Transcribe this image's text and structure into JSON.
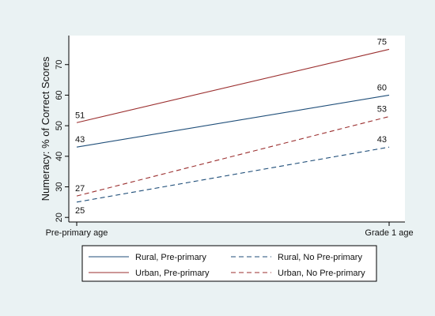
{
  "chart_data": {
    "type": "line",
    "title": "",
    "xlabel": "",
    "ylabel": "Numeracy: % of Correct Scores",
    "categories": [
      "Pre-primary age",
      "Grade 1 age"
    ],
    "ylim": [
      18.5,
      79.5
    ],
    "yticks": [
      20,
      30,
      40,
      50,
      60,
      70
    ],
    "grid": false,
    "legend_position": "bottom",
    "series": [
      {
        "name": "Rural, Pre-primary",
        "values": [
          43,
          60
        ],
        "labels": [
          "43",
          "60"
        ],
        "color": "#1f4e79",
        "dashed": false
      },
      {
        "name": "Urban, Pre-primary",
        "values": [
          51,
          75
        ],
        "labels": [
          "51",
          "75"
        ],
        "color": "#9b2f2f",
        "dashed": false
      },
      {
        "name": "Rural, No Pre-primary",
        "values": [
          25,
          43
        ],
        "labels": [
          "25",
          "43"
        ],
        "color": "#1f4e79",
        "dashed": true
      },
      {
        "name": "Urban, No Pre-primary",
        "values": [
          27,
          53
        ],
        "labels": [
          "27",
          "53"
        ],
        "color": "#9b2f2f",
        "dashed": true
      }
    ]
  },
  "colors": {
    "outer_background": "#eaf2f3",
    "plot_background": "#ffffff",
    "axis": "#000000"
  }
}
